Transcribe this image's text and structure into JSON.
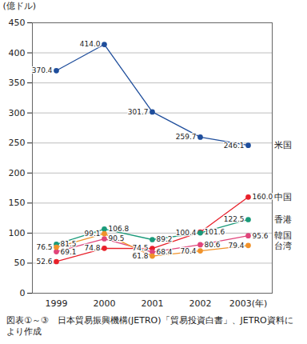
{
  "chart_data": {
    "type": "line",
    "y_label": "(億ドル)",
    "caption": "図表①～③　日本貿易振興機構(JETRO)「貿易投資白書」、JETRO資料により作成",
    "categories": [
      "1999",
      "2000",
      "2001",
      "2002",
      "2003(年)"
    ],
    "series": [
      {
        "name": "米国",
        "color": "#1f4e9c",
        "values": [
          370.4,
          414.0,
          301.7,
          259.7,
          246.1
        ],
        "value_labels": [
          "370.4",
          "414.0",
          "301.7",
          "259.7",
          "246.1"
        ]
      },
      {
        "name": "中国",
        "color": "#e8202a",
        "values": [
          52.6,
          74.8,
          74.5,
          101.6,
          160.0
        ],
        "value_labels": [
          "52.6",
          "74.8",
          "74.5",
          "101.6",
          "160.0"
        ]
      },
      {
        "name": "香港",
        "color": "#1a9a7a",
        "values": [
          81.5,
          106.8,
          89.2,
          100.4,
          122.5
        ],
        "value_labels": [
          "81.5",
          "106.8",
          "89.2",
          "100.4",
          "122.5"
        ]
      },
      {
        "name": "韓国",
        "color": "#e0457b",
        "values": [
          69.1,
          90.5,
          68.4,
          80.6,
          95.6
        ],
        "value_labels": [
          "69.1",
          "90.5",
          "68.4",
          "80.6",
          "95.6"
        ]
      },
      {
        "name": "台湾",
        "color": "#f0922a",
        "values": [
          76.5,
          99.1,
          61.8,
          70.4,
          79.4
        ],
        "value_labels": [
          "76.5",
          "99.1",
          "61.8",
          "70.4",
          "79.4"
        ]
      }
    ],
    "ylim": [
      0,
      450
    ],
    "yticks": [
      0,
      50,
      100,
      150,
      200,
      250,
      300,
      350,
      400,
      450
    ],
    "grid": true,
    "marker": "circle",
    "data_labels": true,
    "legend": "right"
  }
}
